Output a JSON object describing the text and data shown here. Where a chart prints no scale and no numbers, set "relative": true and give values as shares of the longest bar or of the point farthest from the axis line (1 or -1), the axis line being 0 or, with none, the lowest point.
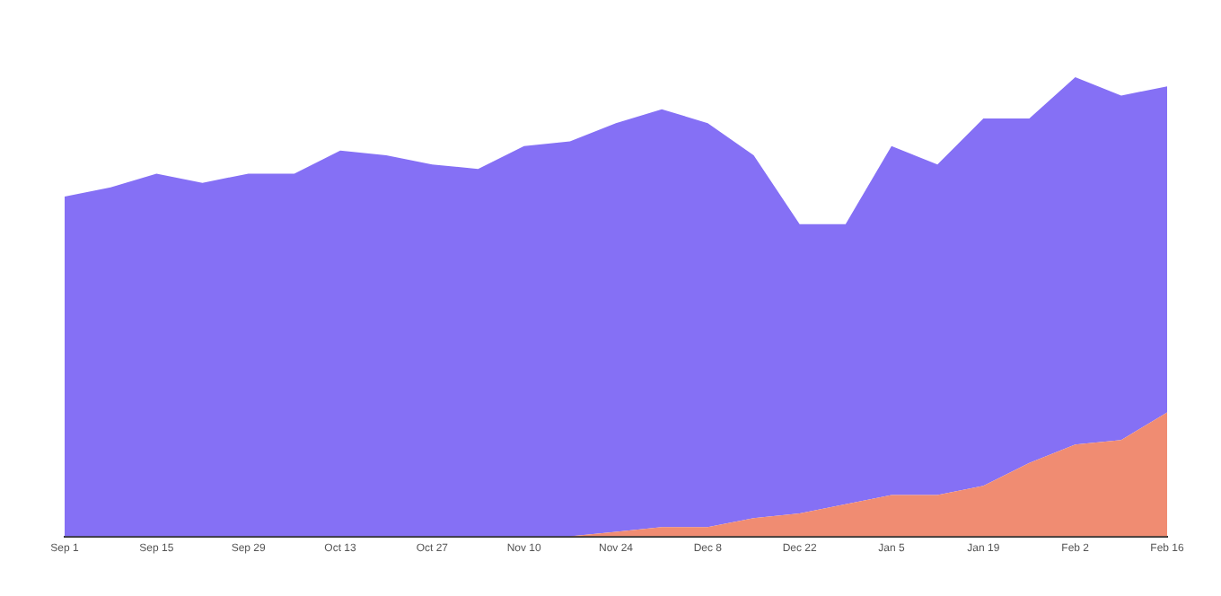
{
  "chart_data": {
    "type": "area",
    "relative": true,
    "stacked": true,
    "categories": [
      "Sep 1",
      null,
      "Sep 15",
      null,
      "Sep 29",
      null,
      "Oct 13",
      null,
      "Oct 27",
      null,
      "Nov 10",
      null,
      "Nov 24",
      null,
      "Dec 8",
      null,
      "Dec 22",
      null,
      "Jan 5",
      null,
      "Jan 19",
      null,
      "Feb 2",
      null,
      "Feb 16"
    ],
    "series": [
      {
        "color": "#f08c72",
        "values": [
          0,
          0,
          0,
          0,
          0,
          0,
          0,
          0,
          0,
          0,
          0,
          0,
          0.01,
          0.02,
          0.02,
          0.04,
          0.05,
          0.07,
          0.09,
          0.09,
          0.11,
          0.16,
          0.2,
          0.21,
          0.27
        ]
      },
      {
        "color": "#8570f5",
        "values": [
          0.74,
          0.76,
          0.79,
          0.77,
          0.79,
          0.79,
          0.84,
          0.83,
          0.81,
          0.8,
          0.85,
          0.86,
          0.89,
          0.91,
          0.88,
          0.79,
          0.63,
          0.61,
          0.76,
          0.72,
          0.8,
          0.75,
          0.8,
          0.75,
          0.71
        ]
      }
    ]
  }
}
